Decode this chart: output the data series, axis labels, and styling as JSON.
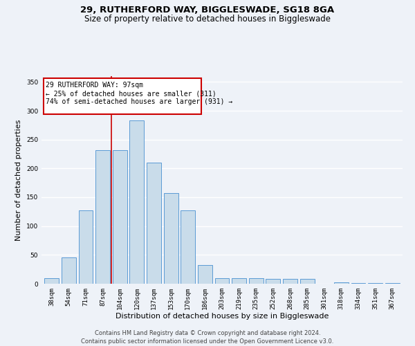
{
  "title1": "29, RUTHERFORD WAY, BIGGLESWADE, SG18 8GA",
  "title2": "Size of property relative to detached houses in Biggleswade",
  "xlabel": "Distribution of detached houses by size in Biggleswade",
  "ylabel": "Number of detached properties",
  "categories": [
    "38sqm",
    "54sqm",
    "71sqm",
    "87sqm",
    "104sqm",
    "120sqm",
    "137sqm",
    "153sqm",
    "170sqm",
    "186sqm",
    "203sqm",
    "219sqm",
    "235sqm",
    "252sqm",
    "268sqm",
    "285sqm",
    "301sqm",
    "318sqm",
    "334sqm",
    "351sqm",
    "367sqm"
  ],
  "values": [
    10,
    46,
    127,
    232,
    232,
    283,
    210,
    157,
    127,
    33,
    10,
    10,
    10,
    9,
    9,
    8,
    0,
    3,
    1,
    1,
    1
  ],
  "bar_color": "#c9dcea",
  "bar_edge_color": "#5b9bd5",
  "vline_x": 3.5,
  "vline_color": "#cc0000",
  "annotation_text": "29 RUTHERFORD WAY: 97sqm\n← 25% of detached houses are smaller (311)\n74% of semi-detached houses are larger (931) →",
  "annotation_box_color": "#ffffff",
  "annotation_box_edge": "#cc0000",
  "ylim": [
    0,
    360
  ],
  "yticks": [
    0,
    50,
    100,
    150,
    200,
    250,
    300,
    350
  ],
  "footer1": "Contains HM Land Registry data © Crown copyright and database right 2024.",
  "footer2": "Contains public sector information licensed under the Open Government Licence v3.0.",
  "background_color": "#eef2f8",
  "grid_color": "#ffffff",
  "title_fontsize": 9.5,
  "subtitle_fontsize": 8.5,
  "axis_label_fontsize": 8,
  "tick_fontsize": 6.5,
  "footer_fontsize": 6,
  "ann_fontsize": 7
}
